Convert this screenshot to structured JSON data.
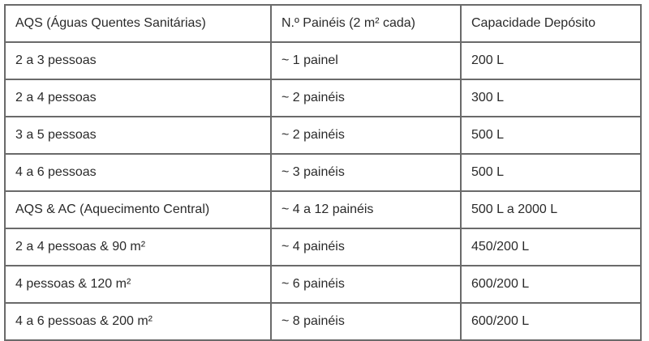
{
  "table": {
    "header": [
      "AQS (Águas Quentes Sanitárias)",
      "N.º Painéis (2 m² cada)",
      "Capacidade Depósito"
    ],
    "rows": [
      [
        "2 a 3 pessoas",
        "~ 1 painel",
        "200 L"
      ],
      [
        "2 a 4 pessoas",
        "~ 2 painéis",
        "300 L"
      ],
      [
        "3 a 5 pessoas",
        "~ 2 painéis",
        "500 L"
      ],
      [
        "4 a 6 pessoas",
        "~ 3 painéis",
        "500 L"
      ],
      [
        "AQS & AC (Aquecimento Central)",
        "~ 4 a 12 painéis",
        "500 L a 2000 L"
      ],
      [
        "2 a 4 pessoas & 90 m²",
        "~ 4 painéis",
        "450/200 L"
      ],
      [
        "4 pessoas & 120 m²",
        "~ 6 painéis",
        "600/200 L"
      ],
      [
        "4 a 6 pessoas & 200 m²",
        "~ 8 painéis",
        "600/200 L"
      ]
    ]
  }
}
